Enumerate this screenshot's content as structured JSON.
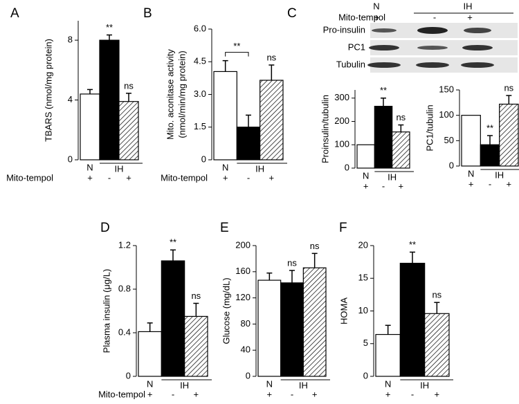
{
  "chart_data": [
    {
      "type": "bar",
      "panel_label": "A",
      "ylabel": [
        "TBARS (nmol/mg protein)"
      ],
      "ylim": [
        0,
        9.3
      ],
      "yticks": [
        0,
        4,
        8
      ],
      "categories": [
        "+",
        "-",
        "+"
      ],
      "category_row_label": "Mito-tempol",
      "group_labels": [
        "N",
        "IH"
      ],
      "values": [
        4.4,
        8.0,
        3.9
      ],
      "errors": [
        0.3,
        0.35,
        0.55
      ],
      "bar_labels": [
        null,
        "**",
        "ns"
      ],
      "colors": [
        "#ffffff",
        "#000000",
        "hatch"
      ]
    },
    {
      "type": "bar",
      "panel_label": "B",
      "ylabel": [
        "Mito. aconitase activity",
        "(nmol/min/mg protein)"
      ],
      "ylim": [
        0,
        6
      ],
      "yticks": [
        0,
        1.5,
        {
          "value": 3,
          "label": "3.0"
        },
        4.5,
        {
          "value": 6,
          "label": "6.0"
        }
      ],
      "categories": [
        "+",
        "-",
        "+"
      ],
      "category_row_label": "Mito-tempol",
      "group_labels": [
        "N",
        "IH"
      ],
      "values": [
        4.05,
        1.5,
        3.65
      ],
      "errors": [
        0.5,
        0.55,
        0.7
      ],
      "bar_labels": [
        null,
        null,
        "ns"
      ],
      "bracket_label": "**",
      "colors": [
        "#ffffff",
        "#000000",
        "hatch"
      ]
    },
    {
      "type": "bar",
      "panel_label": "C",
      "ylabel": [
        "Proinsulin/tubulin"
      ],
      "ylim": [
        0,
        335
      ],
      "yticks": [
        0,
        100,
        200,
        300
      ],
      "categories": [
        "+",
        "-",
        "+"
      ],
      "group_labels": [
        "N",
        "IH"
      ],
      "values": [
        100,
        265,
        155
      ],
      "errors": [
        0,
        35,
        30
      ],
      "bar_labels": [
        null,
        "**",
        "ns"
      ],
      "colors": [
        "#ffffff",
        "#000000",
        "hatch"
      ]
    },
    {
      "type": "bar",
      "ylabel": [
        "PC1/tubulin"
      ],
      "ylim": [
        0,
        150
      ],
      "yticks": [
        0,
        50,
        100,
        150
      ],
      "categories": [
        "+",
        "-",
        "+"
      ],
      "group_labels": [
        "N",
        "IH"
      ],
      "values": [
        100,
        42,
        122
      ],
      "errors": [
        0,
        18,
        17
      ],
      "bar_labels": [
        null,
        "**",
        "ns"
      ],
      "colors": [
        "#ffffff",
        "#000000",
        "hatch"
      ]
    },
    {
      "type": "bar",
      "panel_label": "D",
      "ylabel": [
        "Plasma insulin (μg/L)"
      ],
      "ylim": [
        0,
        1.2
      ],
      "yticks": [
        0,
        0.4,
        0.8,
        1.2
      ],
      "categories": [
        "+",
        "-",
        "+"
      ],
      "category_row_label": "Mito-tempol",
      "group_labels": [
        "N",
        "IH"
      ],
      "values": [
        0.41,
        1.06,
        0.55
      ],
      "errors": [
        0.08,
        0.1,
        0.12
      ],
      "bar_labels": [
        null,
        "**",
        "ns"
      ],
      "colors": [
        "#ffffff",
        "#000000",
        "hatch"
      ]
    },
    {
      "type": "bar",
      "panel_label": "E",
      "ylabel": [
        "Glucose (mg/dL)"
      ],
      "ylim": [
        0,
        200
      ],
      "yticks": [
        0,
        40,
        80,
        120,
        160,
        200
      ],
      "categories": [
        "+",
        "-",
        "+"
      ],
      "group_labels": [
        "N",
        "IH"
      ],
      "values": [
        147,
        143,
        166
      ],
      "errors": [
        11,
        19,
        22
      ],
      "bar_labels": [
        null,
        "ns",
        "ns"
      ],
      "colors": [
        "#ffffff",
        "#000000",
        "hatch"
      ]
    },
    {
      "type": "bar",
      "panel_label": "F",
      "ylabel": [
        "HOMA"
      ],
      "ylim": [
        0,
        20
      ],
      "yticks": [
        0,
        5,
        10,
        15,
        20
      ],
      "categories": [
        "+",
        "-",
        "+"
      ],
      "group_labels": [
        "N",
        "IH"
      ],
      "values": [
        6.4,
        17.3,
        9.6
      ],
      "errors": [
        1.4,
        1.7,
        1.7
      ],
      "bar_labels": [
        null,
        "**",
        "ns"
      ],
      "colors": [
        "#ffffff",
        "#000000",
        "hatch"
      ]
    }
  ],
  "blot": {
    "treatment_label": "Mito-tempol",
    "groups": [
      "N",
      "IH"
    ],
    "signs": [
      "+",
      "-",
      "+"
    ],
    "rows": [
      "Pro-insulin",
      "PC1",
      "Tubulin"
    ]
  }
}
